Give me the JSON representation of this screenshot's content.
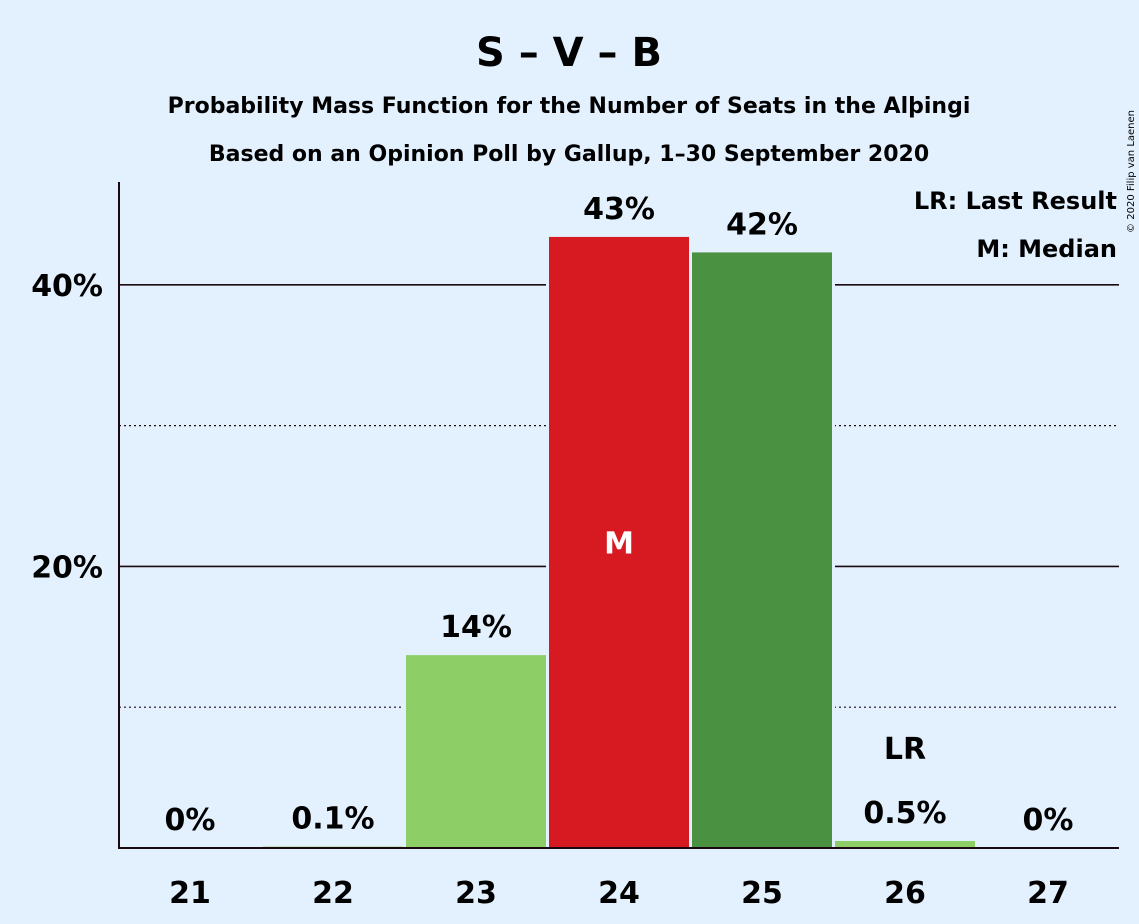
{
  "chart_data": {
    "type": "bar",
    "title": "S – V – B",
    "subtitle_1": "Probability Mass Function for the Number of Seats in the Alþingi",
    "subtitle_2": "Based on an Opinion Poll by Gallup, 1–30 September 2020",
    "copyright": "© 2020 Filip van Laenen",
    "legend": {
      "last_result": "LR: Last Result",
      "median": "M: Median",
      "position": "top-right"
    },
    "categories": [
      "21",
      "22",
      "23",
      "24",
      "25",
      "26",
      "27"
    ],
    "values": [
      0,
      0.1,
      13.7,
      43.4,
      42.3,
      0.5,
      0
    ],
    "value_labels": [
      "0%",
      "0.1%",
      "14%",
      "43%",
      "42%",
      "0.5%",
      "0%"
    ],
    "bar_colors": [
      "#8dce66",
      "#8dce66",
      "#8dce66",
      "#d71a21",
      "#4a9142",
      "#8dce66",
      "#8dce66"
    ],
    "median_category": "24",
    "median_marker": "M",
    "last_result_category": "26",
    "last_result_marker": "LR",
    "ylim": [
      0,
      47
    ],
    "y_ticks": [
      20,
      40
    ],
    "y_tick_labels": [
      "20%",
      "40%"
    ],
    "y_minor_ticks": [
      10,
      30
    ],
    "grid": true
  }
}
